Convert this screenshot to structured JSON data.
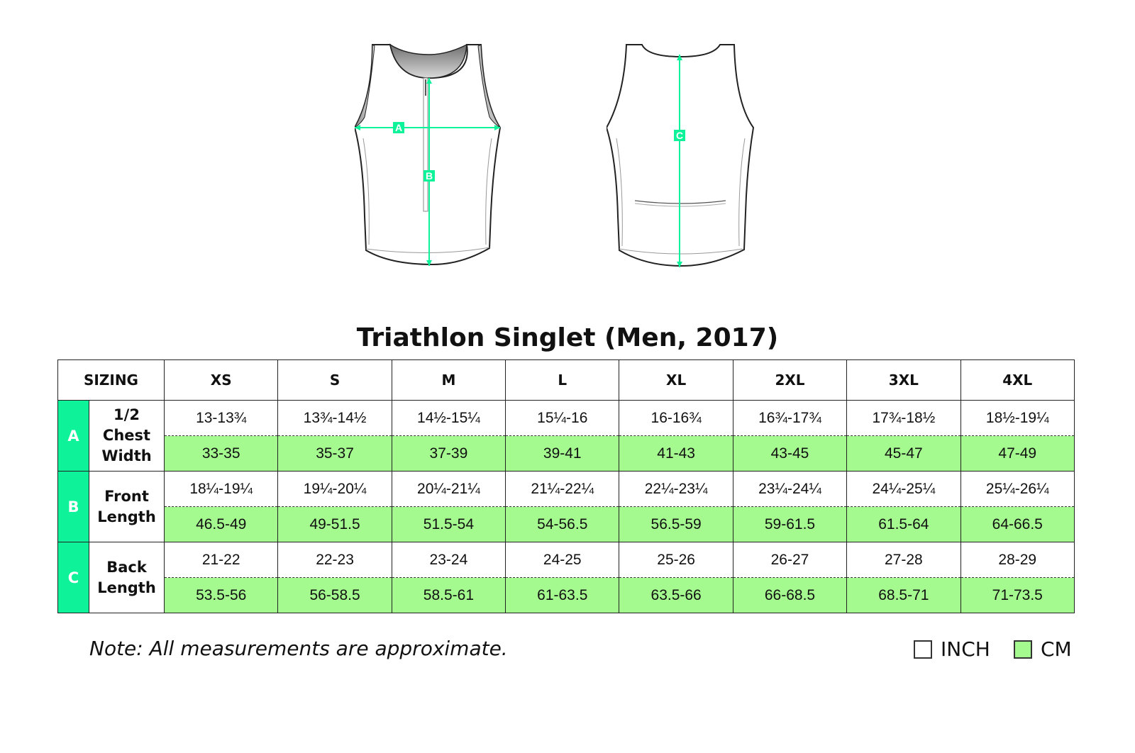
{
  "title": "Triathlon Singlet (Men, 2017)",
  "diagram": {
    "front_labels": [
      "A",
      "B"
    ],
    "back_labels": [
      "C"
    ],
    "accent_color": "#0ef39a"
  },
  "table": {
    "header_label": "SIZING",
    "sizes": [
      "XS",
      "S",
      "M",
      "L",
      "XL",
      "2XL",
      "3XL",
      "4XL"
    ],
    "rows": [
      {
        "letter": "A",
        "label_lines": [
          "1/2",
          "Chest",
          "Width"
        ],
        "inch": [
          "13-13¾",
          "13¾-14½",
          "14½-15¼",
          "15¼-16",
          "16-16¾",
          "16¾-17¾",
          "17¾-18½",
          "18½-19¼"
        ],
        "cm": [
          "33-35",
          "35-37",
          "37-39",
          "39-41",
          "41-43",
          "43-45",
          "45-47",
          "47-49"
        ]
      },
      {
        "letter": "B",
        "label_lines": [
          "Front",
          "Length"
        ],
        "inch": [
          "18¼-19¼",
          "19¼-20¼",
          "20¼-21¼",
          "21¼-22¼",
          "22¼-23¼",
          "23¼-24¼",
          "24¼-25¼",
          "25¼-26¼"
        ],
        "cm": [
          "46.5-49",
          "49-51.5",
          "51.5-54",
          "54-56.5",
          "56.5-59",
          "59-61.5",
          "61.5-64",
          "64-66.5"
        ]
      },
      {
        "letter": "C",
        "label_lines": [
          "Back",
          "Length"
        ],
        "inch": [
          "21-22",
          "22-23",
          "23-24",
          "24-25",
          "25-26",
          "26-27",
          "27-28",
          "28-29"
        ],
        "cm": [
          "53.5-56",
          "56-58.5",
          "58.5-61",
          "61-63.5",
          "63.5-66",
          "66-68.5",
          "68.5-71",
          "71-73.5"
        ]
      }
    ],
    "inch_row_color": "#ffffff",
    "cm_row_color": "#a4f98f",
    "letter_color": "#0ef39a"
  },
  "note": "Note: All measurements are approximate.",
  "legend": {
    "inch_label": "INCH",
    "cm_label": "CM"
  }
}
